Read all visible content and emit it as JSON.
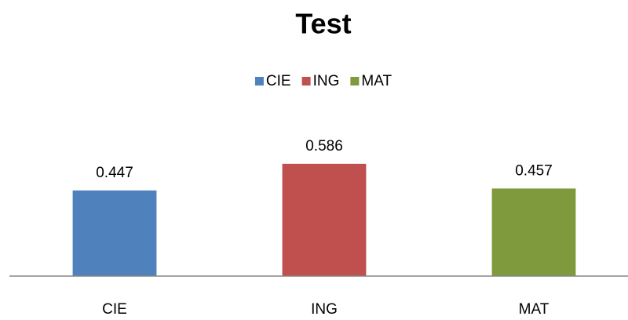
{
  "chart_data": {
    "type": "bar",
    "title": "Test",
    "categories": [
      "CIE",
      "ING",
      "MAT"
    ],
    "values": [
      0.447,
      0.586,
      0.457
    ],
    "colors": [
      "#4f81bd",
      "#c0504d",
      "#7f9a3d"
    ],
    "ylim": [
      0,
      0.7
    ],
    "legend": "top"
  }
}
